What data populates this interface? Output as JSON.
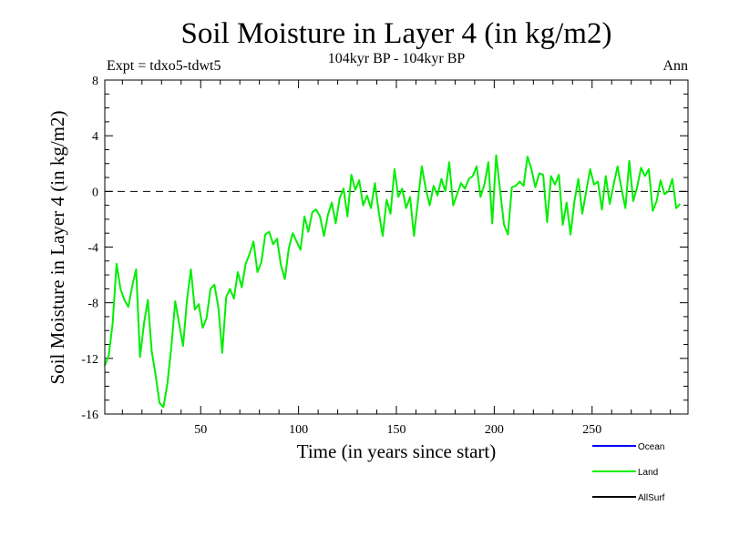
{
  "chart_data": {
    "type": "line",
    "title": "Soil Moisture in Layer 4 (in kg/m2)",
    "subtitle": "104kyr BP - 104kyr BP",
    "experiment": "Expt = tdxo5-tdwt5",
    "season": "Ann",
    "xlabel": "Time (in years since start)",
    "ylabel": "Soil Moisture in Layer 4 (in kg/m2)",
    "xlim": [
      1,
      299
    ],
    "ylim": [
      -16,
      8
    ],
    "x_ticks": [
      50,
      100,
      150,
      200,
      250
    ],
    "y_ticks": [
      -16,
      -12,
      -8,
      -4,
      0,
      4,
      8
    ],
    "reference_line": {
      "y": 0,
      "style": "dashed"
    },
    "legend_position": "bottom-right",
    "series": [
      {
        "name": "Ocean",
        "color": "#0000ff",
        "values": []
      },
      {
        "name": "Land",
        "color": "#00ee00",
        "x_start": 1,
        "x_step": 2,
        "values": [
          -12.5,
          -11.8,
          -9.5,
          -5.2,
          -7.0,
          -7.8,
          -8.3,
          -6.8,
          -5.6,
          -11.9,
          -9.5,
          -7.8,
          -11.5,
          -13.2,
          -15.2,
          -15.5,
          -13.8,
          -11.2,
          -7.9,
          -9.5,
          -11.1,
          -7.8,
          -5.6,
          -8.5,
          -8.1,
          -9.8,
          -9.1,
          -7.0,
          -6.7,
          -8.3,
          -11.6,
          -7.6,
          -7.0,
          -7.7,
          -5.8,
          -6.9,
          -5.2,
          -4.5,
          -3.6,
          -5.8,
          -5.1,
          -3.1,
          -2.9,
          -3.8,
          -3.4,
          -5.3,
          -6.3,
          -4.1,
          -3.0,
          -3.6,
          -4.2,
          -1.8,
          -2.9,
          -1.5,
          -1.3,
          -1.8,
          -3.2,
          -1.7,
          -0.8,
          -2.3,
          -0.5,
          0.2,
          -1.8,
          1.2,
          0.1,
          0.8,
          -1.0,
          -0.3,
          -1.2,
          0.6,
          -1.5,
          -3.2,
          -0.6,
          -1.6,
          1.6,
          -0.4,
          0.2,
          -1.2,
          -0.4,
          -3.2,
          -0.7,
          1.8,
          0.2,
          -1.0,
          0.4,
          -0.3,
          0.9,
          0.0,
          2.1,
          -1.0,
          -0.2,
          0.6,
          0.2,
          0.9,
          1.1,
          1.8,
          -0.4,
          0.5,
          2.1,
          -2.3,
          2.6,
          0.1,
          -2.4,
          -3.1,
          0.3,
          0.4,
          0.7,
          0.4,
          2.5,
          1.6,
          0.3,
          1.3,
          1.2,
          -2.2,
          1.1,
          0.5,
          1.2,
          -2.4,
          -0.8,
          -3.1,
          -0.7,
          0.9,
          -1.6,
          0.0,
          1.6,
          0.5,
          0.7,
          -1.3,
          1.1,
          -0.9,
          0.5,
          1.8,
          0.2,
          -1.2,
          2.2,
          -0.7,
          0.3,
          1.7,
          1.1,
          1.6,
          -1.4,
          -0.7,
          0.8,
          -0.2,
          0.0,
          0.9,
          -1.2,
          -0.9
        ]
      },
      {
        "name": "AllSurf",
        "color": "#000000",
        "values": []
      }
    ]
  }
}
